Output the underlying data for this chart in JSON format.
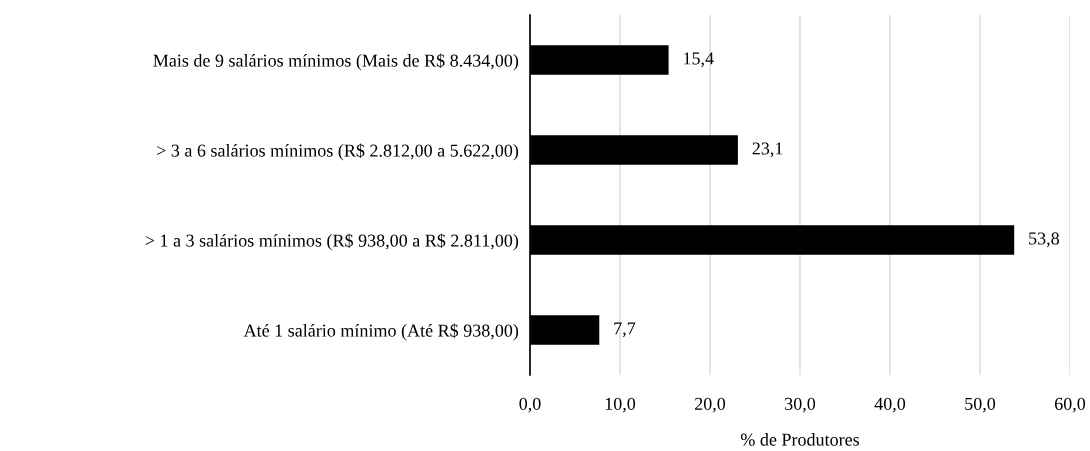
{
  "chart_data": {
    "type": "bar",
    "orientation": "horizontal",
    "categories": [
      "Mais de 9 salários mínimos (Mais de R$ 8.434,00)",
      "> 3 a 6 salários mínimos (R$ 2.812,00 a 5.622,00)",
      "> 1 a 3 salários mínimos (R$ 938,00 a R$ 2.811,00)",
      "Até 1 salário mínimo (Até R$ 938,00)"
    ],
    "values": [
      15.4,
      23.1,
      53.8,
      7.7
    ],
    "value_labels": [
      "15,4",
      "23,1",
      "53,8",
      "7,7"
    ],
    "color": "#000000",
    "xlabel": "% de Produtores",
    "xlim": [
      0,
      60
    ],
    "xticks": [
      {
        "value": 0,
        "label": "0,0"
      },
      {
        "value": 10,
        "label": "10,0"
      },
      {
        "value": 20,
        "label": "20,0"
      },
      {
        "value": 30,
        "label": "30,0"
      },
      {
        "value": 40,
        "label": "40,0"
      },
      {
        "value": 50,
        "label": "50,0"
      },
      {
        "value": 60,
        "label": "60,0"
      }
    ],
    "grid": "x",
    "legend": false
  }
}
